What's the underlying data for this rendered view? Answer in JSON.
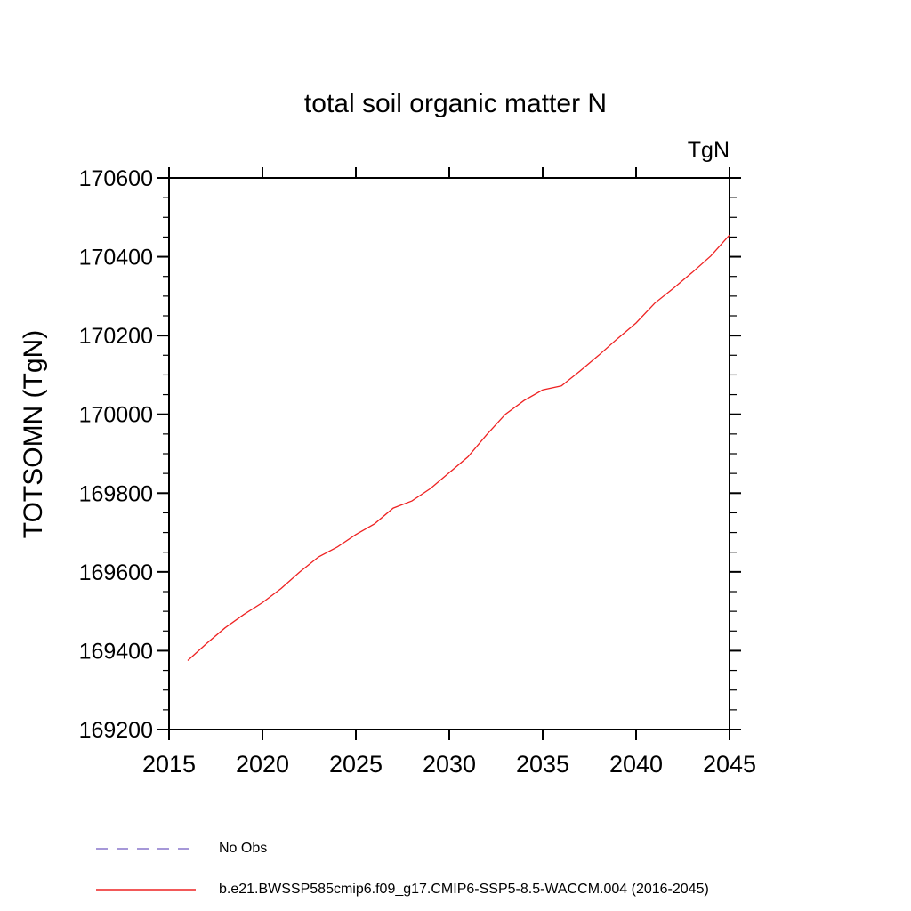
{
  "chart_data": {
    "type": "line",
    "title": "total soil organic matter N",
    "ylabel": "TOTSOMN  (TgN)",
    "xlabel": "",
    "units_label": "TgN",
    "xlim": [
      2015,
      2045
    ],
    "ylim": [
      169200,
      170600
    ],
    "x_ticks": [
      2015,
      2020,
      2025,
      2030,
      2035,
      2040,
      2045
    ],
    "y_ticks": [
      169200,
      169400,
      169600,
      169800,
      170000,
      170200,
      170400,
      170600
    ],
    "y_minor_step": 50,
    "grid": false,
    "legend_position": "below",
    "frame_color": "#000000",
    "series": [
      {
        "name": "b.e21.BWSSP585cmip6.f09_g17.CMIP6-SSP5-8.5-WACCM.004 (2016-2045)",
        "color": "#ee2222",
        "style": "solid",
        "x": [
          2016,
          2017,
          2018,
          2019,
          2020,
          2021,
          2022,
          2023,
          2024,
          2025,
          2026,
          2027,
          2028,
          2029,
          2030,
          2031,
          2032,
          2033,
          2034,
          2035,
          2036,
          2037,
          2038,
          2039,
          2040,
          2041,
          2042,
          2043,
          2044,
          2045
        ],
        "values": [
          169375,
          169418,
          169458,
          169492,
          169522,
          169558,
          169600,
          169638,
          169663,
          169695,
          169722,
          169762,
          169780,
          169812,
          169852,
          169892,
          169948,
          170000,
          170035,
          170062,
          170072,
          170110,
          170150,
          170192,
          170232,
          170282,
          170320,
          170360,
          170402,
          170455
        ]
      }
    ],
    "legend": [
      {
        "label": "No Obs",
        "color": "#8877cc",
        "style": "dashed"
      },
      {
        "label": "b.e21.BWSSP585cmip6.f09_g17.CMIP6-SSP5-8.5-WACCM.004 (2016-2045)",
        "color": "#ee2222",
        "style": "solid"
      }
    ]
  }
}
